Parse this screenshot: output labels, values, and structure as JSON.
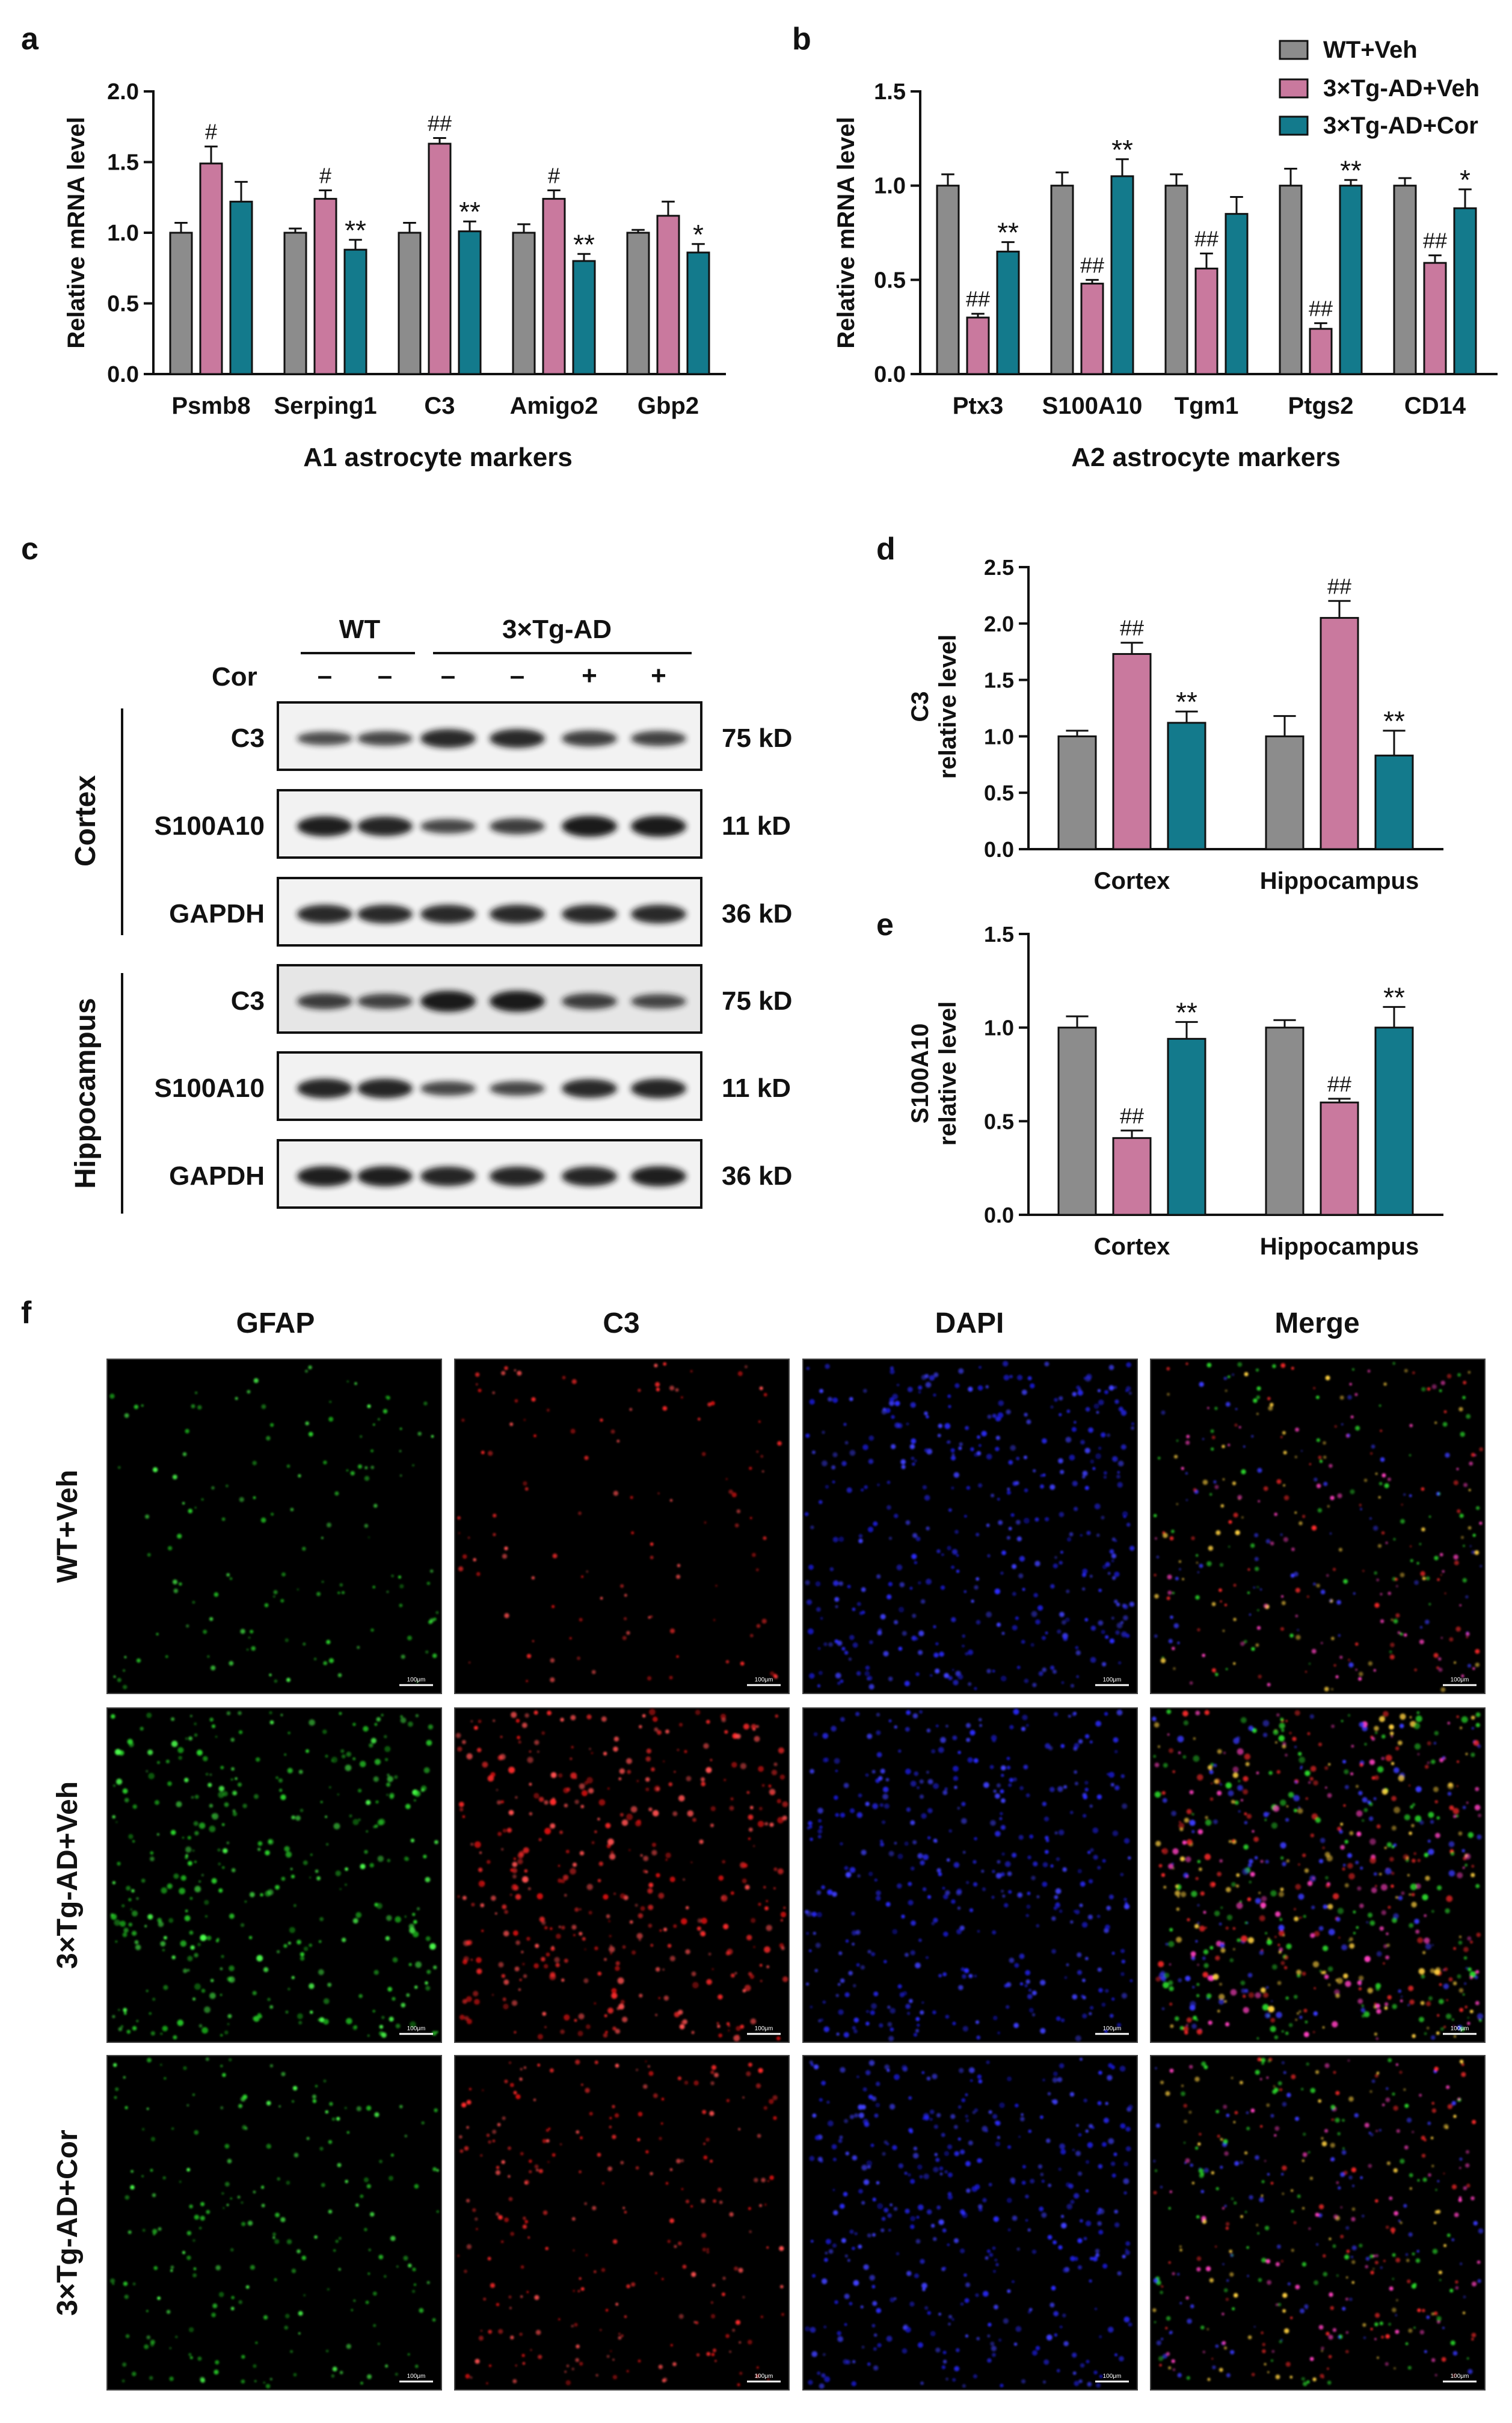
{
  "colors": {
    "wt_veh": "#8c8c8c",
    "tg_veh": "#c9799e",
    "tg_cor": "#137a8c",
    "axis": "#111111"
  },
  "legend": [
    "WT+Veh",
    "3×Tg-AD+Veh",
    "3×Tg-AD+Cor"
  ],
  "panel_labels": {
    "a": "a",
    "b": "b",
    "c": "c",
    "d": "d",
    "e": "e",
    "f": "f"
  },
  "chart_data": [
    {
      "id": "a",
      "type": "bar",
      "title": "",
      "xlabel": "A1 astrocyte markers",
      "ylabel": "Relative mRNA level",
      "ylim": [
        0,
        2.0
      ],
      "yticks": [
        "0.0",
        "0.5",
        "1.0",
        "1.5",
        "2.0"
      ],
      "categories": [
        "Psmb8",
        "Serping1",
        "C3",
        "Amigo2",
        "Gbp2"
      ],
      "series": [
        {
          "name": "WT+Veh",
          "values": [
            1.0,
            1.0,
            1.0,
            1.0,
            1.0
          ],
          "errors": [
            0.07,
            0.03,
            0.07,
            0.06,
            0.02
          ],
          "marks": [
            "",
            "",
            "",
            "",
            ""
          ]
        },
        {
          "name": "3×Tg-AD+Veh",
          "values": [
            1.49,
            1.24,
            1.63,
            1.24,
            1.12
          ],
          "errors": [
            0.12,
            0.06,
            0.04,
            0.06,
            0.1
          ],
          "marks": [
            "#",
            "#",
            "##",
            "#",
            ""
          ]
        },
        {
          "name": "3×Tg-AD+Cor",
          "values": [
            1.22,
            0.88,
            1.01,
            0.8,
            0.86
          ],
          "errors": [
            0.14,
            0.07,
            0.07,
            0.05,
            0.06
          ],
          "marks": [
            "",
            "**",
            "**",
            "**",
            "*"
          ]
        }
      ]
    },
    {
      "id": "b",
      "type": "bar",
      "title": "",
      "xlabel": "A2 astrocyte markers",
      "ylabel": "Relative mRNA level",
      "ylim": [
        0,
        1.5
      ],
      "yticks": [
        "0.0",
        "0.5",
        "1.0",
        "1.5"
      ],
      "categories": [
        "Ptx3",
        "S100A10",
        "Tgm1",
        "Ptgs2",
        "CD14"
      ],
      "series": [
        {
          "name": "WT+Veh",
          "values": [
            1.0,
            1.0,
            1.0,
            1.0,
            1.0
          ],
          "errors": [
            0.06,
            0.07,
            0.06,
            0.09,
            0.04
          ],
          "marks": [
            "",
            "",
            "",
            "",
            ""
          ]
        },
        {
          "name": "3×Tg-AD+Veh",
          "values": [
            0.3,
            0.48,
            0.56,
            0.24,
            0.59
          ],
          "errors": [
            0.02,
            0.02,
            0.08,
            0.03,
            0.04
          ],
          "marks": [
            "##",
            "##",
            "##",
            "##",
            "##"
          ]
        },
        {
          "name": "3×Tg-AD+Cor",
          "values": [
            0.65,
            1.05,
            0.85,
            1.0,
            0.88
          ],
          "errors": [
            0.05,
            0.09,
            0.09,
            0.03,
            0.1
          ],
          "marks": [
            "**",
            "**",
            "",
            "**",
            "*"
          ]
        }
      ]
    },
    {
      "id": "d",
      "type": "bar",
      "title": "",
      "xlabel": "",
      "ylabel": "C3\nrelative level",
      "ylim": [
        0,
        2.5
      ],
      "yticks": [
        "0.0",
        "0.5",
        "1.0",
        "1.5",
        "2.0",
        "2.5"
      ],
      "categories": [
        "Cortex",
        "Hippocampus"
      ],
      "series": [
        {
          "name": "WT+Veh",
          "values": [
            1.0,
            1.0
          ],
          "errors": [
            0.05,
            0.18
          ],
          "marks": [
            "",
            ""
          ]
        },
        {
          "name": "3×Tg-AD+Veh",
          "values": [
            1.73,
            2.05
          ],
          "errors": [
            0.1,
            0.15
          ],
          "marks": [
            "##",
            "##"
          ]
        },
        {
          "name": "3×Tg-AD+Cor",
          "values": [
            1.12,
            0.83
          ],
          "errors": [
            0.1,
            0.22
          ],
          "marks": [
            "**",
            "**"
          ]
        }
      ]
    },
    {
      "id": "e",
      "type": "bar",
      "title": "",
      "xlabel": "",
      "ylabel": "S100A10\nrelative level",
      "ylim": [
        0,
        1.5
      ],
      "yticks": [
        "0.0",
        "0.5",
        "1.0",
        "1.5"
      ],
      "categories": [
        "Cortex",
        "Hippocampus"
      ],
      "series": [
        {
          "name": "WT+Veh",
          "values": [
            1.0,
            1.0
          ],
          "errors": [
            0.06,
            0.04
          ],
          "marks": [
            "",
            ""
          ]
        },
        {
          "name": "3×Tg-AD+Veh",
          "values": [
            0.41,
            0.6
          ],
          "errors": [
            0.04,
            0.02
          ],
          "marks": [
            "##",
            "##"
          ]
        },
        {
          "name": "3×Tg-AD+Cor",
          "values": [
            0.94,
            1.0
          ],
          "errors": [
            0.09,
            0.11
          ],
          "marks": [
            "**",
            "**"
          ]
        }
      ]
    }
  ],
  "blot": {
    "group_wt": "WT",
    "group_tg": "3×Tg-AD",
    "cor_label": "Cor",
    "cor_marks": [
      "–",
      "–",
      "–",
      "–",
      "+",
      "+"
    ],
    "sections": [
      {
        "name": "Cortex",
        "rows": [
          {
            "protein": "C3",
            "size": "75 kD"
          },
          {
            "protein": "S100A10",
            "size": "11 kD"
          },
          {
            "protein": "GAPDH",
            "size": "36 kD"
          }
        ]
      },
      {
        "name": "Hippocampus",
        "rows": [
          {
            "protein": "C3",
            "size": "75 kD"
          },
          {
            "protein": "S100A10",
            "size": "11 kD"
          },
          {
            "protein": "GAPDH",
            "size": "36 kD"
          }
        ]
      }
    ]
  },
  "micro": {
    "columns": [
      "GFAP",
      "C3",
      "DAPI",
      "Merge"
    ],
    "rows": [
      "WT+Veh",
      "3×Tg-AD+Veh",
      "3×Tg-AD+Cor"
    ],
    "scale_label": "100μm"
  }
}
